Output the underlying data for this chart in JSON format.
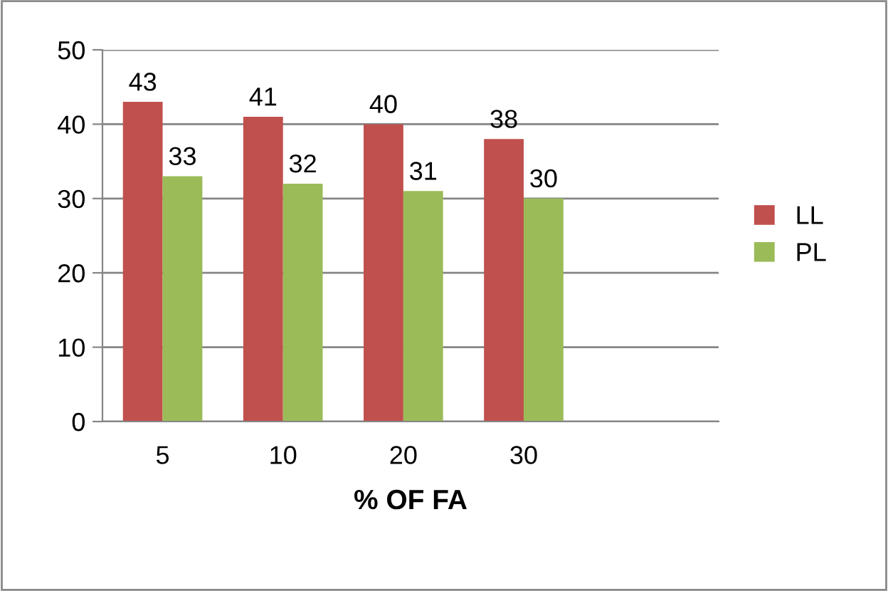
{
  "chart_data": {
    "type": "bar",
    "xlabel": "% OF FA",
    "categories": [
      "5",
      "10",
      "20",
      "30"
    ],
    "series": [
      {
        "name": "LL",
        "color": "#c0504d",
        "values": [
          43,
          41,
          40,
          38
        ]
      },
      {
        "name": "PL",
        "color": "#9bbb59",
        "values": [
          33,
          32,
          31,
          30
        ]
      }
    ],
    "ylim": [
      0,
      50
    ],
    "yticks": [
      0,
      10,
      20,
      30,
      40,
      50
    ],
    "grid": "y",
    "legend": "right",
    "data_labels": true
  }
}
